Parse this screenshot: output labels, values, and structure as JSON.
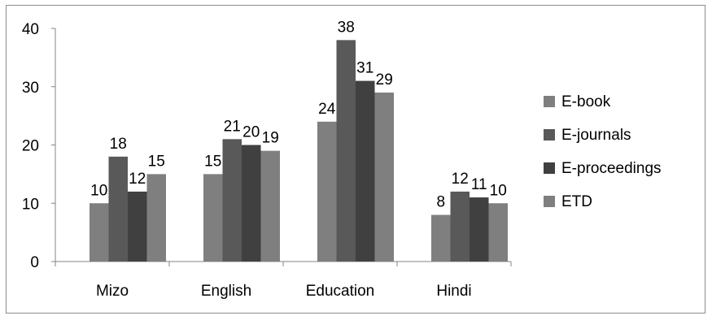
{
  "chart_data": {
    "type": "bar",
    "categories": [
      "Mizo",
      "English",
      "Education",
      "Hindi"
    ],
    "series": [
      {
        "name": "E-book",
        "values": [
          10,
          15,
          24,
          8
        ],
        "color": "#7f7f7f"
      },
      {
        "name": "E-journals",
        "values": [
          18,
          21,
          38,
          12
        ],
        "color": "#595959"
      },
      {
        "name": "E-proceedings",
        "values": [
          12,
          20,
          31,
          11
        ],
        "color": "#404040"
      },
      {
        "name": "ETD",
        "values": [
          15,
          19,
          29,
          10
        ],
        "color": "#7f7f7f"
      }
    ],
    "ylim": [
      0,
      40
    ],
    "yticks": [
      "0",
      "10",
      "20",
      "30",
      "40"
    ],
    "grid": false,
    "legend": "right",
    "data_labels": true
  }
}
